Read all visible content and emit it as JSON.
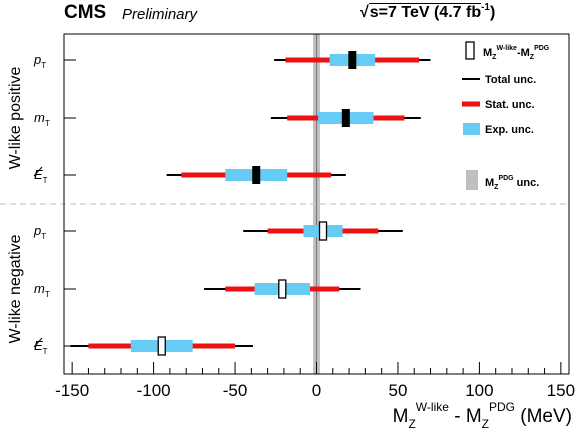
{
  "header": {
    "experiment": "CMS",
    "status": "Preliminary",
    "energy_prefix": "√",
    "energy_text": "s=7 TeV (4.7 fb",
    "lumi_exponent": "-1",
    "energy_close": ")"
  },
  "chart_data": {
    "type": "error-bar",
    "xlabel": {
      "main": "M",
      "sub1": "Z",
      "sup1": "W-like",
      "minus": " - ",
      "main2": "M",
      "sub2": "Z",
      "sup2": "PDG",
      "unit": " (MeV)"
    },
    "xlim": [
      -155,
      155
    ],
    "xticks": [
      -150,
      -100,
      -50,
      0,
      50,
      100,
      150
    ],
    "pdg_band_halfwidth": 2.1,
    "groups": [
      {
        "label": "W-like positive"
      },
      {
        "label": "W-like negative"
      }
    ],
    "rows": [
      {
        "group": 0,
        "var": "p",
        "sub": "T",
        "center": 22,
        "exp": 14,
        "stat": 41,
        "total": 48,
        "marker": "filled"
      },
      {
        "group": 0,
        "var": "m",
        "sub": "T",
        "center": 18,
        "exp": 17,
        "stat": 36,
        "total": 46,
        "marker": "filled"
      },
      {
        "group": 0,
        "var": "E",
        "sub": "T",
        "missing": true,
        "center": -37,
        "exp": 19,
        "stat": 46,
        "total": 55,
        "marker": "filled"
      },
      {
        "group": 1,
        "var": "p",
        "sub": "T",
        "center": 4,
        "exp": 12,
        "stat": 34,
        "total": 49,
        "marker": "open"
      },
      {
        "group": 1,
        "var": "m",
        "sub": "T",
        "center": -21,
        "exp": 17,
        "stat": 35,
        "total": 48,
        "marker": "open"
      },
      {
        "group": 1,
        "var": "E",
        "sub": "T",
        "missing": true,
        "center": -95,
        "exp": 19,
        "stat": 45,
        "total": 56,
        "marker": "open"
      }
    ],
    "legend": {
      "marker_label": {
        "main": "M",
        "sub": "Z",
        "sup": "W-like",
        "minus": "-",
        "main2": "M",
        "sub2": "Z",
        "sup2": "PDG"
      },
      "total": "Total unc.",
      "stat": "Stat. unc.",
      "exp": "Exp. unc.",
      "pdg": {
        "main": "M",
        "sub": "Z",
        "sup": "PDG",
        "rest": " unc."
      }
    },
    "colors": {
      "total": "#000000",
      "stat": "#ee1111",
      "exp": "#66ccf5",
      "pdg": "#bfbfbf",
      "divider": "#cccccc"
    }
  }
}
